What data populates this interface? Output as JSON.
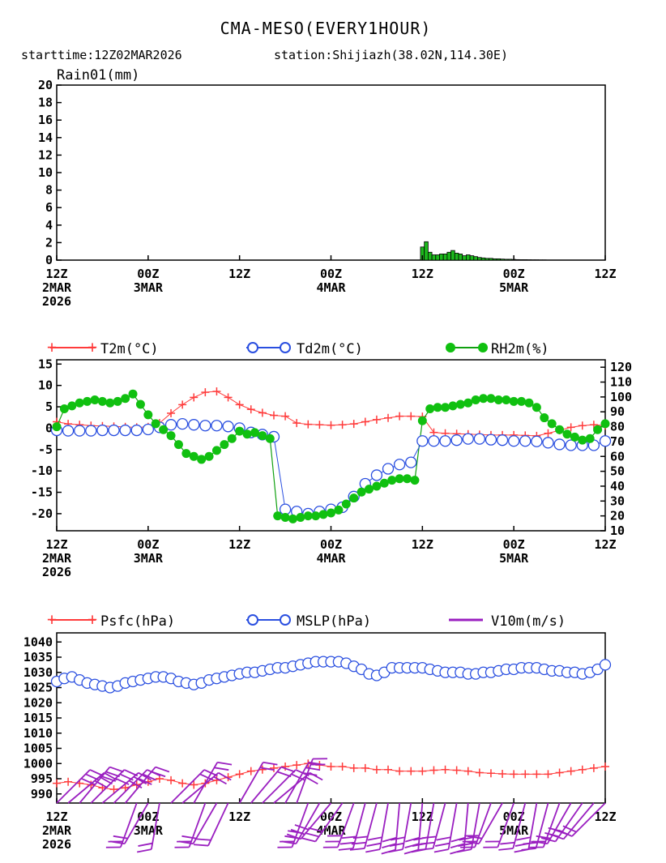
{
  "title": "CMA-MESO(EVERY1HOUR)",
  "starttime": "starttime:12Z02MAR2026",
  "station": "station:Shijiazh(38.02N,114.30E)",
  "x_ticks": [
    {
      "time": "12Z",
      "date": "2MAR",
      "year": "2026"
    },
    {
      "time": "00Z",
      "date": "3MAR",
      "year": ""
    },
    {
      "time": "12Z",
      "date": "",
      "year": ""
    },
    {
      "time": "00Z",
      "date": "4MAR",
      "year": ""
    },
    {
      "time": "12Z",
      "date": "",
      "year": ""
    },
    {
      "time": "00Z",
      "date": "5MAR",
      "year": ""
    },
    {
      "time": "12Z",
      "date": "",
      "year": ""
    }
  ],
  "colors": {
    "rain": "#1cb81c",
    "t2m": "#ff3b3b",
    "td2m": "#2a4fe0",
    "rh2m": "#10c010",
    "rh_line": "#10a010",
    "psfc": "#ff3b3b",
    "mslp": "#2a4fe0",
    "wind": "#9a1fc0"
  },
  "chart_data": [
    {
      "type": "bar",
      "name": "rain",
      "title": "Rain01(mm)",
      "x_hours": [
        96,
        97,
        98,
        99,
        100,
        101,
        102,
        103,
        104,
        105,
        106,
        107,
        108,
        109,
        110,
        111,
        112,
        113,
        114,
        115,
        116,
        117,
        118,
        119,
        120,
        121,
        122,
        123,
        124,
        125,
        126,
        127,
        128
      ],
      "values": [
        1.5,
        2.1,
        0.9,
        0.6,
        0.6,
        0.7,
        0.7,
        0.9,
        1.1,
        0.8,
        0.7,
        0.5,
        0.6,
        0.5,
        0.4,
        0.3,
        0.25,
        0.2,
        0.2,
        0.15,
        0.15,
        0.12,
        0.1,
        0.1,
        0.08,
        0.06,
        0.05,
        0.05,
        0.04,
        0.03,
        0.03,
        0.02,
        0.02
      ],
      "ylim": [
        0,
        20
      ],
      "yticks": [
        0,
        2,
        4,
        6,
        8,
        10,
        12,
        14,
        16,
        18,
        20
      ],
      "xlim_hours": [
        0,
        144
      ]
    },
    {
      "type": "line",
      "name": "temperature",
      "legend": [
        "T2m(°C)",
        "Td2m(°C)",
        "RH2m(%)"
      ],
      "ylim": [
        -24,
        16
      ],
      "yticks": [
        -20,
        -15,
        -10,
        -5,
        0,
        5,
        10,
        15
      ],
      "y2lim": [
        10,
        125
      ],
      "y2ticks": [
        10,
        20,
        30,
        40,
        50,
        60,
        70,
        80,
        90,
        100,
        110,
        120
      ],
      "xlim_hours": [
        0,
        144
      ],
      "series": [
        {
          "name": "T2m",
          "axis": "left",
          "x": [
            0,
            3,
            6,
            9,
            12,
            15,
            18,
            21,
            24,
            27,
            30,
            33,
            36,
            39,
            42,
            45,
            48,
            51,
            54,
            57,
            60,
            63,
            66,
            69,
            72,
            75,
            78,
            81,
            84,
            87,
            90,
            93,
            96,
            99,
            102,
            105,
            108,
            111,
            114,
            117,
            120,
            123,
            126,
            129,
            132,
            135,
            138,
            141,
            144
          ],
          "y": [
            1.5,
            1.0,
            0.8,
            0.6,
            0.5,
            0.4,
            0.3,
            0.2,
            0.3,
            1.2,
            3.5,
            5.5,
            7.2,
            8.4,
            8.6,
            7.2,
            5.5,
            4.4,
            3.6,
            3.0,
            2.8,
            1.2,
            0.9,
            0.8,
            0.7,
            0.8,
            1.0,
            1.5,
            2.0,
            2.4,
            2.8,
            2.8,
            2.7,
            -1.0,
            -1.2,
            -1.3,
            -1.4,
            -1.5,
            -1.6,
            -1.6,
            -1.6,
            -1.7,
            -1.8,
            -1.2,
            -0.5,
            0.2,
            0.6,
            0.8,
            0.6
          ]
        },
        {
          "name": "Td2m",
          "axis": "left",
          "x": [
            0,
            3,
            6,
            9,
            12,
            15,
            18,
            21,
            24,
            27,
            30,
            33,
            36,
            39,
            42,
            45,
            48,
            51,
            54,
            57,
            60,
            63,
            66,
            69,
            72,
            75,
            78,
            81,
            84,
            87,
            90,
            93,
            96,
            99,
            102,
            105,
            108,
            111,
            114,
            117,
            120,
            123,
            126,
            129,
            132,
            135,
            138,
            141,
            144
          ],
          "y": [
            -0.5,
            -0.6,
            -0.6,
            -0.6,
            -0.5,
            -0.5,
            -0.5,
            -0.5,
            -0.3,
            0.2,
            0.8,
            1.0,
            0.8,
            0.6,
            0.6,
            0.4,
            0.0,
            -1.0,
            -1.5,
            -2.0,
            -19.0,
            -19.5,
            -20.0,
            -19.5,
            -19.0,
            -18.5,
            -16.0,
            -13.0,
            -11.0,
            -9.5,
            -8.5,
            -8.0,
            -3.0,
            -3.0,
            -3.0,
            -2.8,
            -2.5,
            -2.5,
            -2.7,
            -2.8,
            -3.0,
            -3.0,
            -3.1,
            -3.4,
            -3.8,
            -4.0,
            -4.0,
            -4.0,
            -3.0
          ]
        },
        {
          "name": "RH2m",
          "axis": "right",
          "x": [
            0,
            2,
            4,
            6,
            8,
            10,
            12,
            14,
            16,
            18,
            20,
            22,
            24,
            26,
            28,
            30,
            32,
            34,
            36,
            38,
            40,
            42,
            44,
            46,
            48,
            50,
            52,
            54,
            56,
            58,
            60,
            62,
            64,
            66,
            68,
            70,
            72,
            74,
            76,
            78,
            80,
            82,
            84,
            86,
            88,
            90,
            92,
            94,
            96,
            98,
            100,
            102,
            104,
            106,
            108,
            110,
            112,
            114,
            116,
            118,
            120,
            122,
            124,
            126,
            128,
            130,
            132,
            134,
            136,
            138,
            140,
            142,
            144
          ],
          "y": [
            80,
            92,
            94,
            96,
            97,
            98,
            97,
            96,
            97,
            99,
            102,
            95,
            88,
            82,
            78,
            74,
            68,
            62,
            60,
            58,
            60,
            64,
            68,
            72,
            77,
            75,
            76,
            74,
            72,
            20,
            19,
            18,
            19,
            20,
            20,
            21,
            22,
            24,
            28,
            32,
            36,
            38,
            40,
            42,
            44,
            45,
            45,
            44,
            84,
            92,
            93,
            93,
            94,
            95,
            96,
            98,
            99,
            99,
            98,
            98,
            97,
            97,
            96,
            93,
            86,
            82,
            78,
            75,
            73,
            71,
            72,
            78,
            82
          ]
        },
        {
          "name": "RH2m_line",
          "axis": "right",
          "color_ref": "rh_line"
        }
      ]
    },
    {
      "type": "line",
      "name": "pressure",
      "legend": [
        "Psfc(hPa)",
        "MSLP(hPa)",
        "V10m(m/s)"
      ],
      "ylim": [
        987,
        1043
      ],
      "yticks": [
        990,
        995,
        1000,
        1005,
        1010,
        1015,
        1020,
        1025,
        1030,
        1035,
        1040
      ],
      "xlim_hours": [
        0,
        144
      ],
      "series": [
        {
          "name": "Psfc",
          "x": [
            0,
            3,
            6,
            9,
            12,
            15,
            18,
            21,
            24,
            27,
            30,
            33,
            36,
            39,
            42,
            45,
            48,
            51,
            54,
            57,
            60,
            63,
            66,
            69,
            72,
            75,
            78,
            81,
            84,
            87,
            90,
            93,
            96,
            99,
            102,
            105,
            108,
            111,
            114,
            117,
            120,
            123,
            126,
            129,
            132,
            135,
            138,
            141,
            144
          ],
          "y": [
            993.5,
            994.0,
            993.5,
            993.0,
            992.0,
            991.5,
            992.0,
            993.0,
            994.0,
            995.0,
            994.5,
            993.5,
            993.0,
            993.5,
            994.5,
            995.5,
            996.5,
            997.5,
            998.0,
            998.5,
            999.0,
            999.5,
            1000.0,
            999.5,
            999.0,
            999.0,
            998.5,
            998.5,
            998.0,
            998.0,
            997.5,
            997.5,
            997.5,
            997.8,
            998.0,
            997.8,
            997.5,
            997.0,
            996.8,
            996.6,
            996.5,
            996.5,
            996.5,
            996.5,
            997.0,
            997.5,
            998.0,
            998.5,
            999.0
          ]
        },
        {
          "name": "MSLP",
          "x": [
            0,
            2,
            4,
            6,
            8,
            10,
            12,
            14,
            16,
            18,
            20,
            22,
            24,
            26,
            28,
            30,
            32,
            34,
            36,
            38,
            40,
            42,
            44,
            46,
            48,
            50,
            52,
            54,
            56,
            58,
            60,
            62,
            64,
            66,
            68,
            70,
            72,
            74,
            76,
            78,
            80,
            82,
            84,
            86,
            88,
            90,
            92,
            94,
            96,
            98,
            100,
            102,
            104,
            106,
            108,
            110,
            112,
            114,
            116,
            118,
            120,
            122,
            124,
            126,
            128,
            130,
            132,
            134,
            136,
            138,
            140,
            142,
            144
          ],
          "y": [
            1027,
            1028,
            1028.5,
            1027.5,
            1026.5,
            1026,
            1025.5,
            1025,
            1025.5,
            1026.5,
            1027,
            1027.5,
            1028,
            1028.5,
            1028.5,
            1028,
            1027,
            1026.5,
            1026,
            1026.5,
            1027.5,
            1028,
            1028.5,
            1029,
            1029.5,
            1030,
            1030,
            1030.5,
            1031,
            1031.5,
            1031.5,
            1032,
            1032.5,
            1033,
            1033.5,
            1033.5,
            1033.5,
            1033.5,
            1033,
            1032,
            1031,
            1029.5,
            1029,
            1030,
            1031.5,
            1031.5,
            1031.5,
            1031.5,
            1031.5,
            1031,
            1030.5,
            1030,
            1030,
            1030,
            1029.5,
            1029.5,
            1030,
            1030,
            1030.5,
            1031,
            1031,
            1031.5,
            1031.5,
            1031.5,
            1031,
            1030.5,
            1030.5,
            1030,
            1030,
            1029.5,
            1030,
            1031,
            1032.5
          ]
        },
        {
          "name": "V10m",
          "type": "barbs",
          "x": [
            0,
            3,
            6,
            9,
            12,
            15,
            18,
            21,
            24,
            27,
            30,
            33,
            36,
            39,
            42,
            45,
            48,
            51,
            54,
            57,
            60,
            63,
            66,
            69,
            72,
            75,
            78,
            81,
            84,
            87,
            90,
            93,
            96,
            99,
            102,
            105,
            108,
            111,
            114,
            117,
            120,
            123,
            126,
            129,
            132,
            135,
            138,
            141,
            144
          ],
          "dir_deg": [
            45,
            50,
            40,
            45,
            50,
            45,
            40,
            200,
            210,
            190,
            45,
            50,
            30,
            200,
            210,
            205,
            30,
            40,
            45,
            50,
            30,
            20,
            200,
            210,
            220,
            215,
            200,
            195,
            195,
            190,
            185,
            190,
            185,
            190,
            195,
            190,
            185,
            190,
            200,
            210,
            200,
            195,
            190,
            195,
            200,
            210,
            215,
            220,
            225
          ],
          "speed": [
            5,
            5,
            6,
            5,
            5,
            5,
            4,
            4,
            4,
            3,
            3,
            4,
            4,
            3,
            3,
            3,
            4,
            3,
            4,
            4,
            5,
            4,
            4,
            5,
            5,
            5,
            6,
            6,
            6,
            6,
            6,
            5,
            5,
            5,
            5,
            5,
            5,
            5,
            5,
            4,
            4,
            4,
            5,
            4,
            4,
            4,
            5,
            4,
            4
          ]
        }
      ]
    }
  ]
}
